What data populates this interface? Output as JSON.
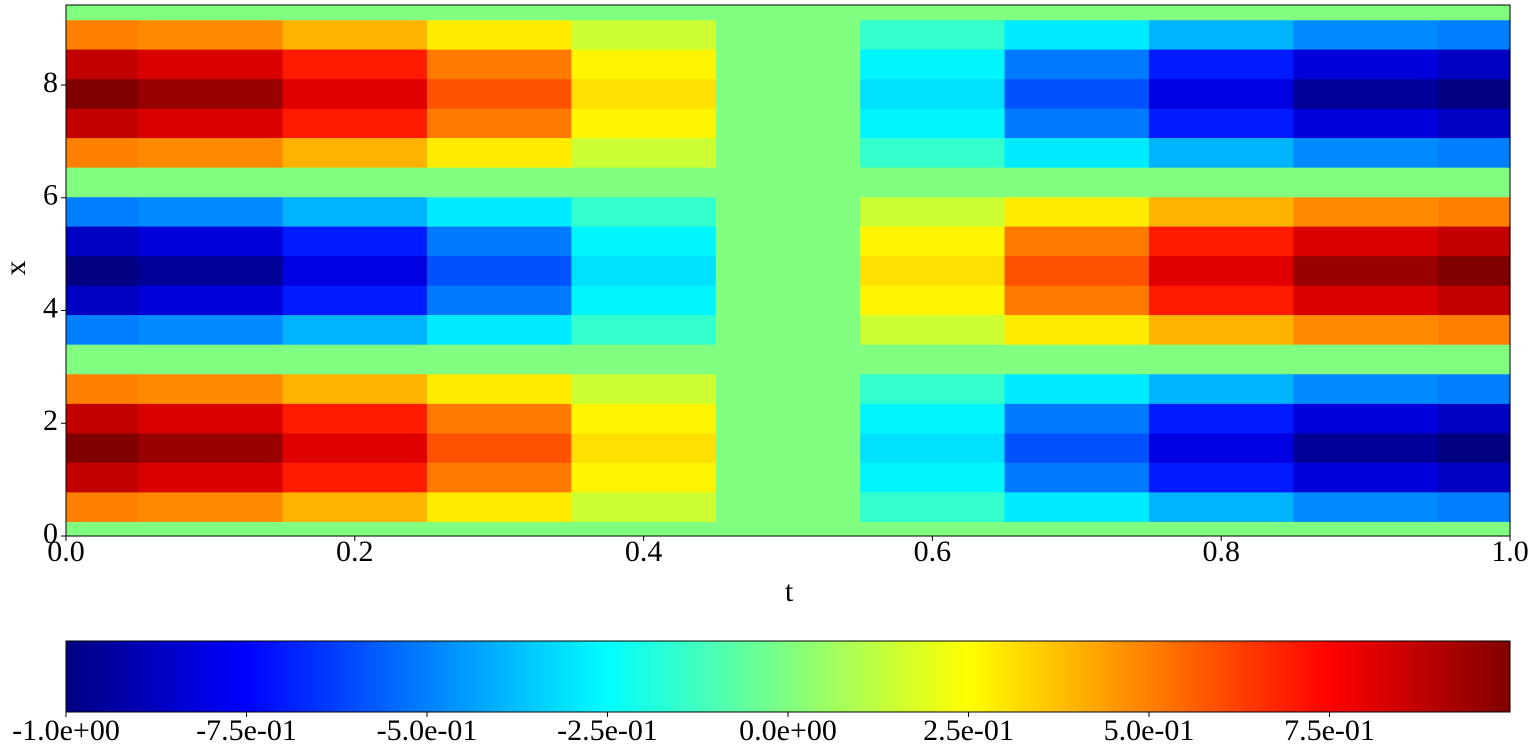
{
  "chart_data": {
    "type": "heatmap",
    "colormap": "jet",
    "xlabel": "t",
    "ylabel": "x",
    "t": [
      0,
      0.1,
      0.2,
      0.3,
      0.4,
      0.5,
      0.6,
      0.7,
      0.8,
      0.9,
      1
    ],
    "x": [
      0,
      0.52,
      1.05,
      1.57,
      2.09,
      2.62,
      3.14,
      3.67,
      4.19,
      4.71,
      5.24,
      5.76,
      6.28,
      6.81,
      7.33,
      7.85,
      8.38,
      8.9,
      9.42
    ],
    "z": [
      [
        0,
        0,
        0,
        0,
        0,
        0,
        0,
        0,
        0,
        0,
        0
      ],
      [
        0.5,
        0.48,
        0.4,
        0.29,
        0.15,
        0,
        -0.15,
        -0.29,
        -0.4,
        -0.48,
        -0.5
      ],
      [
        0.87,
        0.82,
        0.7,
        0.51,
        0.27,
        0,
        -0.27,
        -0.51,
        -0.7,
        -0.82,
        -0.87
      ],
      [
        1,
        0.95,
        0.81,
        0.59,
        0.31,
        0,
        -0.31,
        -0.59,
        -0.81,
        -0.95,
        -1
      ],
      [
        0.87,
        0.82,
        0.7,
        0.51,
        0.27,
        0,
        -0.27,
        -0.51,
        -0.7,
        -0.82,
        -0.87
      ],
      [
        0.5,
        0.48,
        0.4,
        0.29,
        0.15,
        0,
        -0.15,
        -0.29,
        -0.4,
        -0.48,
        -0.5
      ],
      [
        0,
        0,
        0,
        0,
        0,
        0,
        0,
        0,
        0,
        0,
        0
      ],
      [
        -0.5,
        -0.48,
        -0.4,
        -0.29,
        -0.15,
        0,
        0.15,
        0.29,
        0.4,
        0.48,
        0.5
      ],
      [
        -0.87,
        -0.82,
        -0.7,
        -0.51,
        -0.27,
        0,
        0.27,
        0.51,
        0.7,
        0.82,
        0.87
      ],
      [
        -1,
        -0.95,
        -0.81,
        -0.59,
        -0.31,
        0,
        0.31,
        0.59,
        0.81,
        0.95,
        1
      ],
      [
        -0.87,
        -0.82,
        -0.7,
        -0.51,
        -0.27,
        0,
        0.27,
        0.51,
        0.7,
        0.82,
        0.87
      ],
      [
        -0.5,
        -0.48,
        -0.4,
        -0.29,
        -0.15,
        0,
        0.15,
        0.29,
        0.4,
        0.48,
        0.5
      ],
      [
        0,
        0,
        0,
        0,
        0,
        0,
        0,
        0,
        0,
        0,
        0
      ],
      [
        0.5,
        0.48,
        0.4,
        0.29,
        0.15,
        0,
        -0.15,
        -0.29,
        -0.4,
        -0.48,
        -0.5
      ],
      [
        0.87,
        0.82,
        0.7,
        0.51,
        0.27,
        0,
        -0.27,
        -0.51,
        -0.7,
        -0.82,
        -0.87
      ],
      [
        1,
        0.95,
        0.81,
        0.59,
        0.31,
        0,
        -0.31,
        -0.59,
        -0.81,
        -0.95,
        -1
      ],
      [
        0.87,
        0.82,
        0.7,
        0.51,
        0.27,
        0,
        -0.27,
        -0.51,
        -0.7,
        -0.82,
        -0.87
      ],
      [
        0.5,
        0.48,
        0.4,
        0.29,
        0.15,
        0,
        -0.15,
        -0.29,
        -0.4,
        -0.48,
        -0.5
      ],
      [
        0,
        0,
        0,
        0,
        0,
        0,
        0,
        0,
        0,
        0,
        0
      ]
    ],
    "xlim": [
      0,
      1
    ],
    "xticks": [
      {
        "value": 0,
        "label": "0.0"
      },
      0.2,
      0.4,
      0.6,
      0.8,
      {
        "value": 1,
        "label": "1.0"
      }
    ],
    "ylim": [
      0,
      9.42
    ],
    "yticks": [
      0,
      2,
      4,
      6,
      8
    ],
    "clim": [
      -1,
      1
    ],
    "cticks": [
      {
        "value": -1,
        "label": "-1.0e+00"
      },
      {
        "value": -0.75,
        "label": "-7.5e-01"
      },
      {
        "value": -0.5,
        "label": "-5.0e-01"
      },
      {
        "value": -0.25,
        "label": "-2.5e-01"
      },
      {
        "value": 0,
        "label": "0.0e+00"
      },
      {
        "value": 0.25,
        "label": "2.5e-01"
      },
      {
        "value": 0.5,
        "label": "5.0e-01"
      },
      {
        "value": 0.75,
        "label": "7.5e-01"
      }
    ]
  }
}
